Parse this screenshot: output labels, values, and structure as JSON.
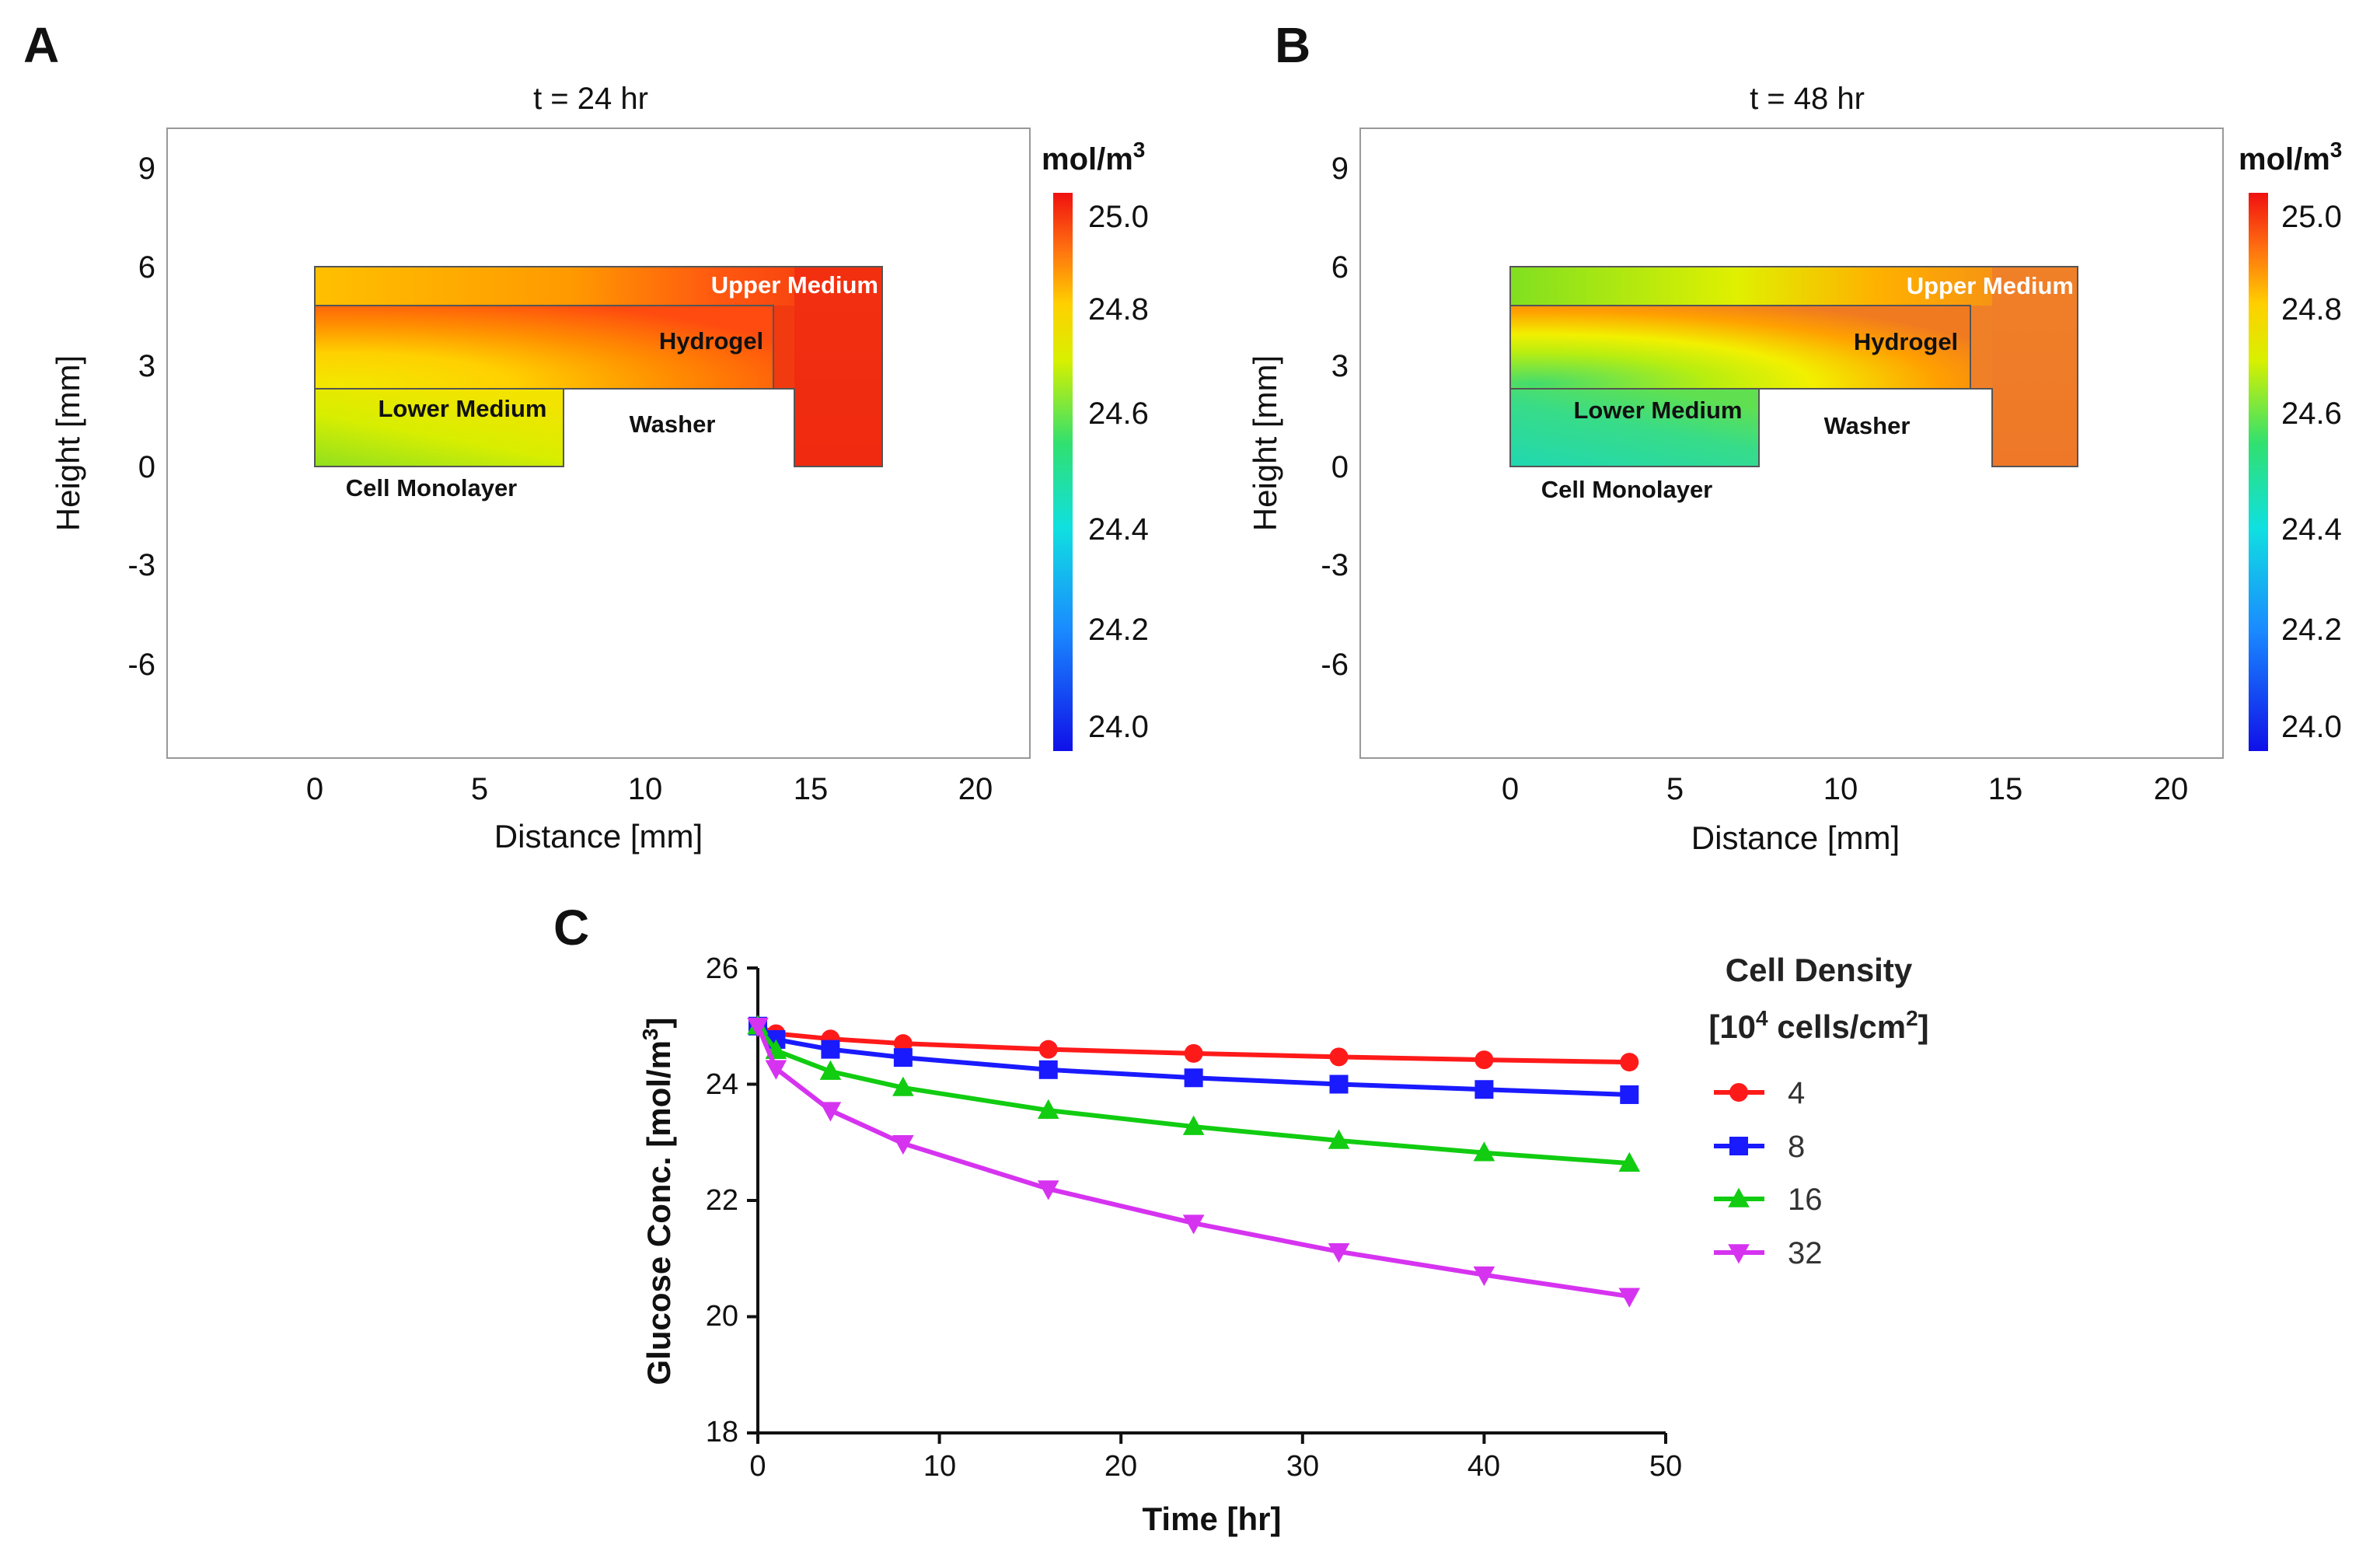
{
  "colors": {
    "series_4": "#ff1a1a",
    "series_8": "#1a1aff",
    "series_16": "#11cc11",
    "series_32": "#d633f0"
  },
  "panel_a": {
    "letter": "A",
    "title": "t = 24 hr",
    "xlabel": "Distance [mm]",
    "ylabel": "Height [mm]",
    "x_ticks": [
      "0",
      "5",
      "10",
      "15",
      "20"
    ],
    "y_ticks": [
      "9",
      "6",
      "3",
      "0",
      "-3",
      "-6"
    ],
    "regions": {
      "upper_medium": "Upper Medium",
      "hydrogel": "Hydrogel",
      "lower_medium": "Lower Medium",
      "washer": "Washer",
      "cell_monolayer": "Cell Monolayer"
    },
    "colorbar": {
      "unit": "mol/m",
      "unit_sup": "3",
      "ticks": [
        "25.0",
        "24.8",
        "24.6",
        "24.4",
        "24.2",
        "24.0"
      ]
    }
  },
  "panel_b": {
    "letter": "B",
    "title": "t = 48 hr",
    "xlabel": "Distance [mm]",
    "ylabel": "Height [mm]",
    "x_ticks": [
      "0",
      "5",
      "10",
      "15",
      "20"
    ],
    "y_ticks": [
      "9",
      "6",
      "3",
      "0",
      "-3",
      "-6"
    ],
    "regions": {
      "upper_medium": "Upper Medium",
      "hydrogel": "Hydrogel",
      "lower_medium": "Lower Medium",
      "washer": "Washer",
      "cell_monolayer": "Cell Monolayer"
    },
    "colorbar": {
      "unit": "mol/m",
      "unit_sup": "3",
      "ticks": [
        "25.0",
        "24.8",
        "24.6",
        "24.4",
        "24.2",
        "24.0"
      ]
    }
  },
  "panel_c": {
    "letter": "C",
    "legend_title_line1": "Cell Density",
    "legend_title_line2_a": "[10",
    "legend_title_line2_sup1": "4",
    "legend_title_line2_b": " cells/cm",
    "legend_title_line2_sup2": "2",
    "legend_title_line2_c": "]",
    "ylabel_main": "Glucose Conc. [mol/m",
    "ylabel_sup": "3",
    "ylabel_end": "]",
    "x_ticks": [
      "0",
      "10",
      "20",
      "30",
      "40",
      "50"
    ],
    "y_ticks": [
      "26",
      "24",
      "22",
      "20",
      "18"
    ]
  },
  "chart_data": [
    {
      "type": "heatmap",
      "title": "t = 24 hr",
      "xlabel": "Distance [mm]",
      "ylabel": "Height [mm]",
      "xlim": [
        -4.5,
        21.5
      ],
      "ylim": [
        -9,
        10.5
      ],
      "colorbar_label": "mol/m3",
      "colorbar_range": [
        23.95,
        25.05
      ],
      "regions": [
        {
          "name": "Upper Medium",
          "x": [
            0,
            17.3
          ],
          "y": [
            5,
            6.1
          ],
          "conc_range": [
            24.7,
            25.0
          ]
        },
        {
          "name": "Hydrogel",
          "x": [
            0,
            14
          ],
          "y": [
            2.4,
            5
          ],
          "conc_range": [
            24.7,
            24.95
          ]
        },
        {
          "name": "Lower Medium",
          "x": [
            0,
            7.5
          ],
          "y": [
            0,
            2.4
          ],
          "conc_range": [
            24.6,
            24.7
          ]
        },
        {
          "name": "Washer",
          "x": [
            7.5,
            14.6
          ],
          "y": [
            0,
            2.4
          ]
        },
        {
          "name": "Cell Monolayer",
          "y": [
            0,
            0
          ]
        }
      ]
    },
    {
      "type": "heatmap",
      "title": "t = 48 hr",
      "xlabel": "Distance [mm]",
      "ylabel": "Height [mm]",
      "xlim": [
        -4.5,
        21.5
      ],
      "ylim": [
        -9,
        10.5
      ],
      "colorbar_label": "mol/m3",
      "colorbar_range": [
        23.95,
        25.05
      ],
      "regions": [
        {
          "name": "Upper Medium",
          "x": [
            0,
            17.3
          ],
          "y": [
            5,
            6.1
          ],
          "conc_range": [
            24.6,
            24.85
          ]
        },
        {
          "name": "Hydrogel",
          "x": [
            0,
            14
          ],
          "y": [
            2.4,
            5
          ],
          "conc_range": [
            24.55,
            24.8
          ]
        },
        {
          "name": "Lower Medium",
          "x": [
            0,
            7.5
          ],
          "y": [
            0,
            2.4
          ],
          "conc_range": [
            24.45,
            24.55
          ]
        },
        {
          "name": "Washer",
          "x": [
            7.5,
            14.6
          ],
          "y": [
            0,
            2.4
          ]
        },
        {
          "name": "Cell Monolayer",
          "y": [
            0,
            0
          ]
        }
      ]
    },
    {
      "type": "line",
      "title": "",
      "xlabel": "Time [hr]",
      "ylabel": "Glucose Conc. [mol/m3]",
      "xlim": [
        0,
        50
      ],
      "ylim": [
        18,
        26
      ],
      "legend_title": "Cell Density [10^4 cells/cm^2]",
      "x": [
        0,
        1,
        4,
        8,
        16,
        24,
        32,
        40,
        48
      ],
      "series": [
        {
          "name": "4",
          "marker": "circle",
          "values": [
            25.0,
            24.87,
            24.78,
            24.7,
            24.6,
            24.53,
            24.47,
            24.42,
            24.38
          ]
        },
        {
          "name": "8",
          "marker": "square",
          "values": [
            25.0,
            24.77,
            24.6,
            24.46,
            24.25,
            24.11,
            24.0,
            23.91,
            23.82
          ]
        },
        {
          "name": "16",
          "marker": "triangle-up",
          "values": [
            25.0,
            24.58,
            24.22,
            23.94,
            23.55,
            23.27,
            23.03,
            22.82,
            22.64
          ]
        },
        {
          "name": "32",
          "marker": "triangle-down",
          "values": [
            25.0,
            24.27,
            23.55,
            22.98,
            22.2,
            21.61,
            21.12,
            20.72,
            20.35
          ]
        }
      ]
    }
  ]
}
